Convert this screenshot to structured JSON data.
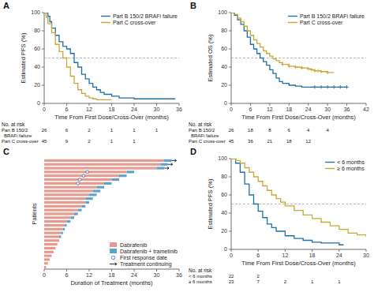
{
  "chart_data": [
    {
      "type": "line",
      "line_style": "step",
      "title": "A",
      "xlabel": "Time From First Dose/Cross-Over (months)",
      "ylabel": "Estimated PFS (%)",
      "xlim": [
        0,
        36
      ],
      "ylim": [
        0,
        100
      ],
      "xticks": [
        0,
        6,
        12,
        18,
        24,
        30,
        36
      ],
      "yticks": [
        0,
        20,
        40,
        60,
        80,
        100
      ],
      "grid": false,
      "legend": "upper right",
      "median_line": 50,
      "series": [
        {
          "name": "Part B 150/2 BRAFi failure",
          "color": "#1F6FA8",
          "x": [
            0,
            0.5,
            1,
            1.5,
            2,
            3,
            4,
            5,
            6,
            7,
            8,
            9,
            10,
            11,
            12,
            13,
            14,
            15,
            16,
            18,
            20,
            24,
            30,
            31,
            35
          ],
          "values": [
            100,
            100,
            96,
            90,
            83,
            75,
            68,
            63,
            60,
            55,
            45,
            40,
            32,
            27,
            22,
            18,
            15,
            12,
            10,
            8,
            6,
            5,
            5,
            5,
            5
          ]
        },
        {
          "name": "Part C cross-over",
          "color": "#C8A838",
          "x": [
            0,
            0.5,
            1,
            2,
            3,
            4,
            5,
            6,
            7,
            8,
            9,
            10,
            11,
            12,
            13,
            14,
            15,
            16,
            18
          ],
          "values": [
            100,
            95,
            88,
            78,
            65,
            57,
            50,
            40,
            30,
            22,
            15,
            11,
            8,
            6,
            5,
            4,
            4,
            4,
            4
          ]
        }
      ],
      "risk_table": {
        "title": "No. at risk",
        "rows": [
          {
            "label": "Part B 150/2\n  BRAFi failure",
            "x": [
              0,
              6,
              12,
              18,
              24,
              30
            ],
            "values": [
              26,
              6,
              2,
              1,
              1,
              1
            ]
          },
          {
            "label": "Part C cross-over",
            "x": [
              0,
              6,
              12,
              18,
              24
            ],
            "values": [
              45,
              9,
              2,
              1,
              1
            ]
          }
        ]
      }
    },
    {
      "type": "line",
      "line_style": "step",
      "title": "B",
      "xlabel": "Time From First Dose/Cross-Over (months)",
      "ylabel": "Estimated OS (%)",
      "xlim": [
        0,
        42
      ],
      "ylim": [
        0,
        100
      ],
      "xticks": [
        0,
        6,
        12,
        18,
        24,
        30,
        36,
        42
      ],
      "yticks": [
        0,
        20,
        40,
        60,
        80,
        100
      ],
      "grid": false,
      "legend": "upper right",
      "median_line": 50,
      "series": [
        {
          "name": "Part B 150/2 BRAFi failure",
          "color": "#1F6FA8",
          "x": [
            0,
            1,
            2,
            3,
            4,
            5,
            6,
            7,
            8,
            9,
            10,
            11,
            12,
            13,
            14,
            15,
            16,
            18,
            20,
            22,
            24,
            25,
            26,
            27,
            28,
            30,
            32,
            34,
            36
          ],
          "values": [
            100,
            97,
            92,
            87,
            80,
            73,
            65,
            60,
            55,
            50,
            46,
            42,
            37,
            33,
            28,
            24,
            22,
            20,
            19,
            18,
            18,
            18,
            18,
            18,
            18,
            18,
            18,
            18,
            18
          ],
          "censor_x": [
            26,
            28,
            30,
            32,
            34,
            36
          ],
          "censor_y": [
            18,
            18,
            18,
            18,
            18,
            18
          ]
        },
        {
          "name": "Part C cross-over",
          "color": "#C8A838",
          "x": [
            0,
            1,
            2,
            3,
            4,
            5,
            6,
            7,
            8,
            9,
            10,
            11,
            12,
            13,
            14,
            15,
            16,
            18,
            20,
            22,
            24,
            25,
            26,
            28,
            30,
            32
          ],
          "values": [
            100,
            98,
            94,
            90,
            85,
            80,
            75,
            70,
            66,
            62,
            58,
            55,
            52,
            49,
            47,
            45,
            43,
            41,
            40,
            39,
            38,
            37,
            36,
            35,
            34,
            34
          ],
          "censor_x": [
            16,
            18,
            20,
            22,
            24,
            25,
            26,
            27,
            28,
            30
          ],
          "censor_y": [
            43,
            41,
            40,
            39,
            38,
            37,
            36,
            36,
            35,
            34
          ]
        }
      ],
      "risk_table": {
        "title": "No. at risk",
        "rows": [
          {
            "label": "Part B 150/2\n  BRAFi failure",
            "x": [
              0,
              6,
              12,
              18,
              24,
              30
            ],
            "values": [
              26,
              18,
              8,
              6,
              4,
              4
            ]
          },
          {
            "label": "Part C cross-over",
            "x": [
              0,
              6,
              12,
              18,
              24
            ],
            "values": [
              45,
              36,
              21,
              18,
              12
            ]
          }
        ]
      }
    },
    {
      "type": "bar",
      "orientation": "horizontal",
      "stacked": true,
      "title": "C",
      "xlabel": "Duration of Treatment (months)",
      "ylabel": "Patients",
      "categories": [
        null,
        null,
        null,
        null,
        null,
        null,
        null,
        null,
        null,
        null,
        null,
        null,
        null,
        null,
        null,
        null,
        null,
        null,
        null,
        null,
        null,
        null,
        null,
        null,
        null,
        null,
        null,
        null,
        null
      ],
      "xlim": [
        0,
        36
      ],
      "xticks": [
        0,
        6,
        12,
        18,
        24,
        30,
        36
      ],
      "tick_labels": "x",
      "grid": false,
      "legend": "lower right",
      "series": [
        {
          "name": "Dabrafenib",
          "color": "#E8998D",
          "values": [
            32,
            31,
            30,
            22,
            20,
            18,
            16,
            14,
            13,
            12,
            11,
            11,
            10,
            9,
            8,
            7,
            6,
            5.5,
            5,
            4.5,
            4,
            4,
            3.5,
            3,
            2.5,
            2,
            1.5,
            1,
            0.5
          ]
        },
        {
          "name": "Dabrafenib + trametinib",
          "color": "#5BA3C9",
          "values": [
            2,
            2,
            2,
            2,
            2,
            2,
            2,
            2,
            2,
            2,
            2,
            1,
            1,
            1,
            1,
            1,
            1,
            0.5,
            0.5,
            0.5,
            0.5,
            0,
            0,
            0,
            0,
            0,
            0,
            0,
            0
          ]
        },
        {
          "name": "First response date",
          "type": "scatter",
          "marker": "circle",
          "color": "#3366AA",
          "values": [
            null,
            null,
            null,
            11.5,
            10.5,
            9.5,
            9.0,
            null,
            null,
            null,
            null,
            null,
            null,
            null,
            null,
            null,
            null,
            null,
            null,
            null,
            null,
            null,
            null,
            null,
            null,
            null,
            null,
            null,
            null
          ]
        },
        {
          "name": "Treatment continuing",
          "type": "arrow",
          "marker": "arrow",
          "color": "#000000",
          "values": [
            34,
            33,
            32,
            null,
            null,
            null,
            null,
            null,
            null,
            null,
            null,
            null,
            null,
            null,
            null,
            null,
            null,
            null,
            null,
            null,
            null,
            null,
            null,
            null,
            null,
            null,
            null,
            null,
            null
          ]
        }
      ]
    },
    {
      "type": "line",
      "line_style": "step",
      "title": "D",
      "xlabel": "Time From First Dose/Cross-Over (months)",
      "ylabel": "Estimated PFS (%)",
      "xlim": [
        0,
        30
      ],
      "ylim": [
        0,
        100
      ],
      "xticks": [
        0,
        6,
        12,
        18,
        24,
        30
      ],
      "yticks": [
        0,
        20,
        40,
        60,
        80,
        100
      ],
      "grid": false,
      "legend": "upper right",
      "median_line": 50,
      "series": [
        {
          "name": "< 6 months",
          "color": "#1F6FA8",
          "x": [
            0,
            1,
            2,
            3,
            4,
            5,
            6,
            7,
            8,
            9,
            10,
            12,
            14,
            16,
            18,
            20,
            24,
            25
          ],
          "values": [
            100,
            95,
            85,
            72,
            60,
            50,
            42,
            35,
            28,
            24,
            20,
            15,
            12,
            10,
            8,
            7,
            5,
            5
          ]
        },
        {
          "name": "≥ 6 months",
          "color": "#C8A838",
          "x": [
            0,
            1,
            2,
            3,
            4,
            5,
            6,
            7,
            8,
            9,
            10,
            11,
            12,
            14,
            16,
            18,
            20,
            22,
            24,
            26,
            28,
            30
          ],
          "values": [
            100,
            98,
            95,
            90,
            85,
            80,
            75,
            70,
            65,
            60,
            56,
            52,
            48,
            43,
            38,
            34,
            30,
            26,
            22,
            18,
            16,
            14
          ]
        }
      ],
      "risk_table": {
        "title": "No. at risk",
        "rows": [
          {
            "label": "< 6 months",
            "x": [
              0,
              6
            ],
            "values": [
              22,
              2
            ]
          },
          {
            "label": "≥ 6 months",
            "x": [
              0,
              6,
              12,
              18,
              24
            ],
            "values": [
              23,
              7,
              2,
              1,
              1
            ]
          }
        ]
      }
    }
  ]
}
